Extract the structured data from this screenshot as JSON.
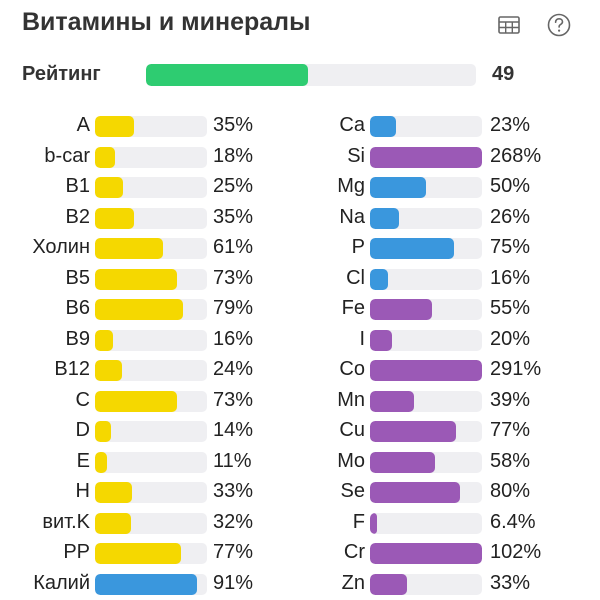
{
  "header": {
    "title": "Витамины и минералы",
    "table_icon": "table-icon",
    "help_icon": "help-icon"
  },
  "rating": {
    "label": "Рейтинг",
    "value": "49",
    "fraction": 0.49,
    "color": "#2ecc71"
  },
  "colors": {
    "yellow": "#f5d800",
    "blue": "#3a97dd",
    "purple": "#9b59b6",
    "track": "#efeff2"
  },
  "vitamins": [
    {
      "label": "A",
      "value": "35%",
      "fraction": 0.35,
      "color": "yellow"
    },
    {
      "label": "b-car",
      "value": "18%",
      "fraction": 0.18,
      "color": "yellow"
    },
    {
      "label": "B1",
      "value": "25%",
      "fraction": 0.25,
      "color": "yellow"
    },
    {
      "label": "B2",
      "value": "35%",
      "fraction": 0.35,
      "color": "yellow"
    },
    {
      "label": "Холин",
      "value": "61%",
      "fraction": 0.61,
      "color": "yellow"
    },
    {
      "label": "B5",
      "value": "73%",
      "fraction": 0.73,
      "color": "yellow"
    },
    {
      "label": "B6",
      "value": "79%",
      "fraction": 0.79,
      "color": "yellow"
    },
    {
      "label": "B9",
      "value": "16%",
      "fraction": 0.16,
      "color": "yellow"
    },
    {
      "label": "B12",
      "value": "24%",
      "fraction": 0.24,
      "color": "yellow"
    },
    {
      "label": "C",
      "value": "73%",
      "fraction": 0.73,
      "color": "yellow"
    },
    {
      "label": "D",
      "value": "14%",
      "fraction": 0.14,
      "color": "yellow"
    },
    {
      "label": "E",
      "value": "11%",
      "fraction": 0.11,
      "color": "yellow"
    },
    {
      "label": "H",
      "value": "33%",
      "fraction": 0.33,
      "color": "yellow"
    },
    {
      "label": "вит.K",
      "value": "32%",
      "fraction": 0.32,
      "color": "yellow"
    },
    {
      "label": "PP",
      "value": "77%",
      "fraction": 0.77,
      "color": "yellow"
    },
    {
      "label": "Калий",
      "value": "91%",
      "fraction": 0.91,
      "color": "blue"
    }
  ],
  "minerals": [
    {
      "label": "Ca",
      "value": "23%",
      "fraction": 0.23,
      "color": "blue"
    },
    {
      "label": "Si",
      "value": "268%",
      "fraction": 1.0,
      "color": "purple"
    },
    {
      "label": "Mg",
      "value": "50%",
      "fraction": 0.5,
      "color": "blue"
    },
    {
      "label": "Na",
      "value": "26%",
      "fraction": 0.26,
      "color": "blue"
    },
    {
      "label": "P",
      "value": "75%",
      "fraction": 0.75,
      "color": "blue"
    },
    {
      "label": "Cl",
      "value": "16%",
      "fraction": 0.16,
      "color": "blue"
    },
    {
      "label": "Fe",
      "value": "55%",
      "fraction": 0.55,
      "color": "purple"
    },
    {
      "label": "I",
      "value": "20%",
      "fraction": 0.2,
      "color": "purple"
    },
    {
      "label": "Co",
      "value": "291%",
      "fraction": 1.0,
      "color": "purple"
    },
    {
      "label": "Mn",
      "value": "39%",
      "fraction": 0.39,
      "color": "purple"
    },
    {
      "label": "Cu",
      "value": "77%",
      "fraction": 0.77,
      "color": "purple"
    },
    {
      "label": "Mo",
      "value": "58%",
      "fraction": 0.58,
      "color": "purple"
    },
    {
      "label": "Se",
      "value": "80%",
      "fraction": 0.8,
      "color": "purple"
    },
    {
      "label": "F",
      "value": "6.4%",
      "fraction": 0.064,
      "color": "purple"
    },
    {
      "label": "Cr",
      "value": "102%",
      "fraction": 1.0,
      "color": "purple"
    },
    {
      "label": "Zn",
      "value": "33%",
      "fraction": 0.33,
      "color": "purple"
    }
  ]
}
